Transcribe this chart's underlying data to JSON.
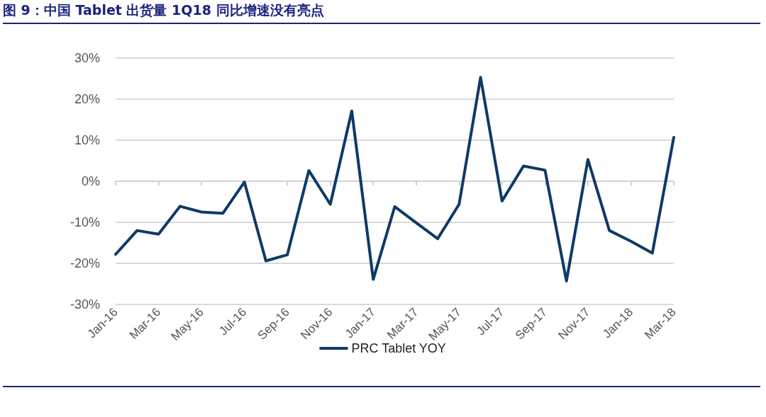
{
  "chart_data": {
    "type": "line",
    "title": "图 9：中国 Tablet 出货量 1Q18 同比增速没有亮点",
    "categories": [
      "Jan-16",
      null,
      "Mar-16",
      null,
      "May-16",
      null,
      "Jul-16",
      null,
      "Sep-16",
      null,
      "Nov-16",
      null,
      "Jan-17",
      null,
      "Mar-17",
      null,
      "May-17",
      null,
      "Jul-17",
      null,
      "Sep-17",
      null,
      "Nov-17",
      null,
      "Jan-18",
      null,
      "Mar-18"
    ],
    "series": [
      {
        "name": "PRC Tablet YOY",
        "color": "#0e3a66",
        "values": [
          -17.8,
          -12.0,
          -12.9,
          -6.1,
          -7.5,
          -7.8,
          -0.2,
          -19.4,
          -17.9,
          2.6,
          -5.6,
          17.1,
          -23.9,
          -6.2,
          -10.1,
          -14.0,
          -5.6,
          25.3,
          -4.8,
          3.7,
          2.7,
          -24.3,
          5.3,
          -12.0,
          -14.6,
          -17.5,
          10.7
        ]
      }
    ],
    "ylim": [
      -30,
      30
    ],
    "yticks": [
      {
        "value": -30,
        "label": "-30%"
      },
      {
        "value": -20,
        "label": "-20%"
      },
      {
        "value": -10,
        "label": "-10%"
      },
      {
        "value": 0,
        "label": "0%"
      },
      {
        "value": 10,
        "label": "10%"
      },
      {
        "value": 20,
        "label": "20%"
      },
      {
        "value": 30,
        "label": "30%"
      }
    ],
    "grid": "y",
    "legend": "bottom",
    "marker": "none",
    "line_style": "solid"
  }
}
